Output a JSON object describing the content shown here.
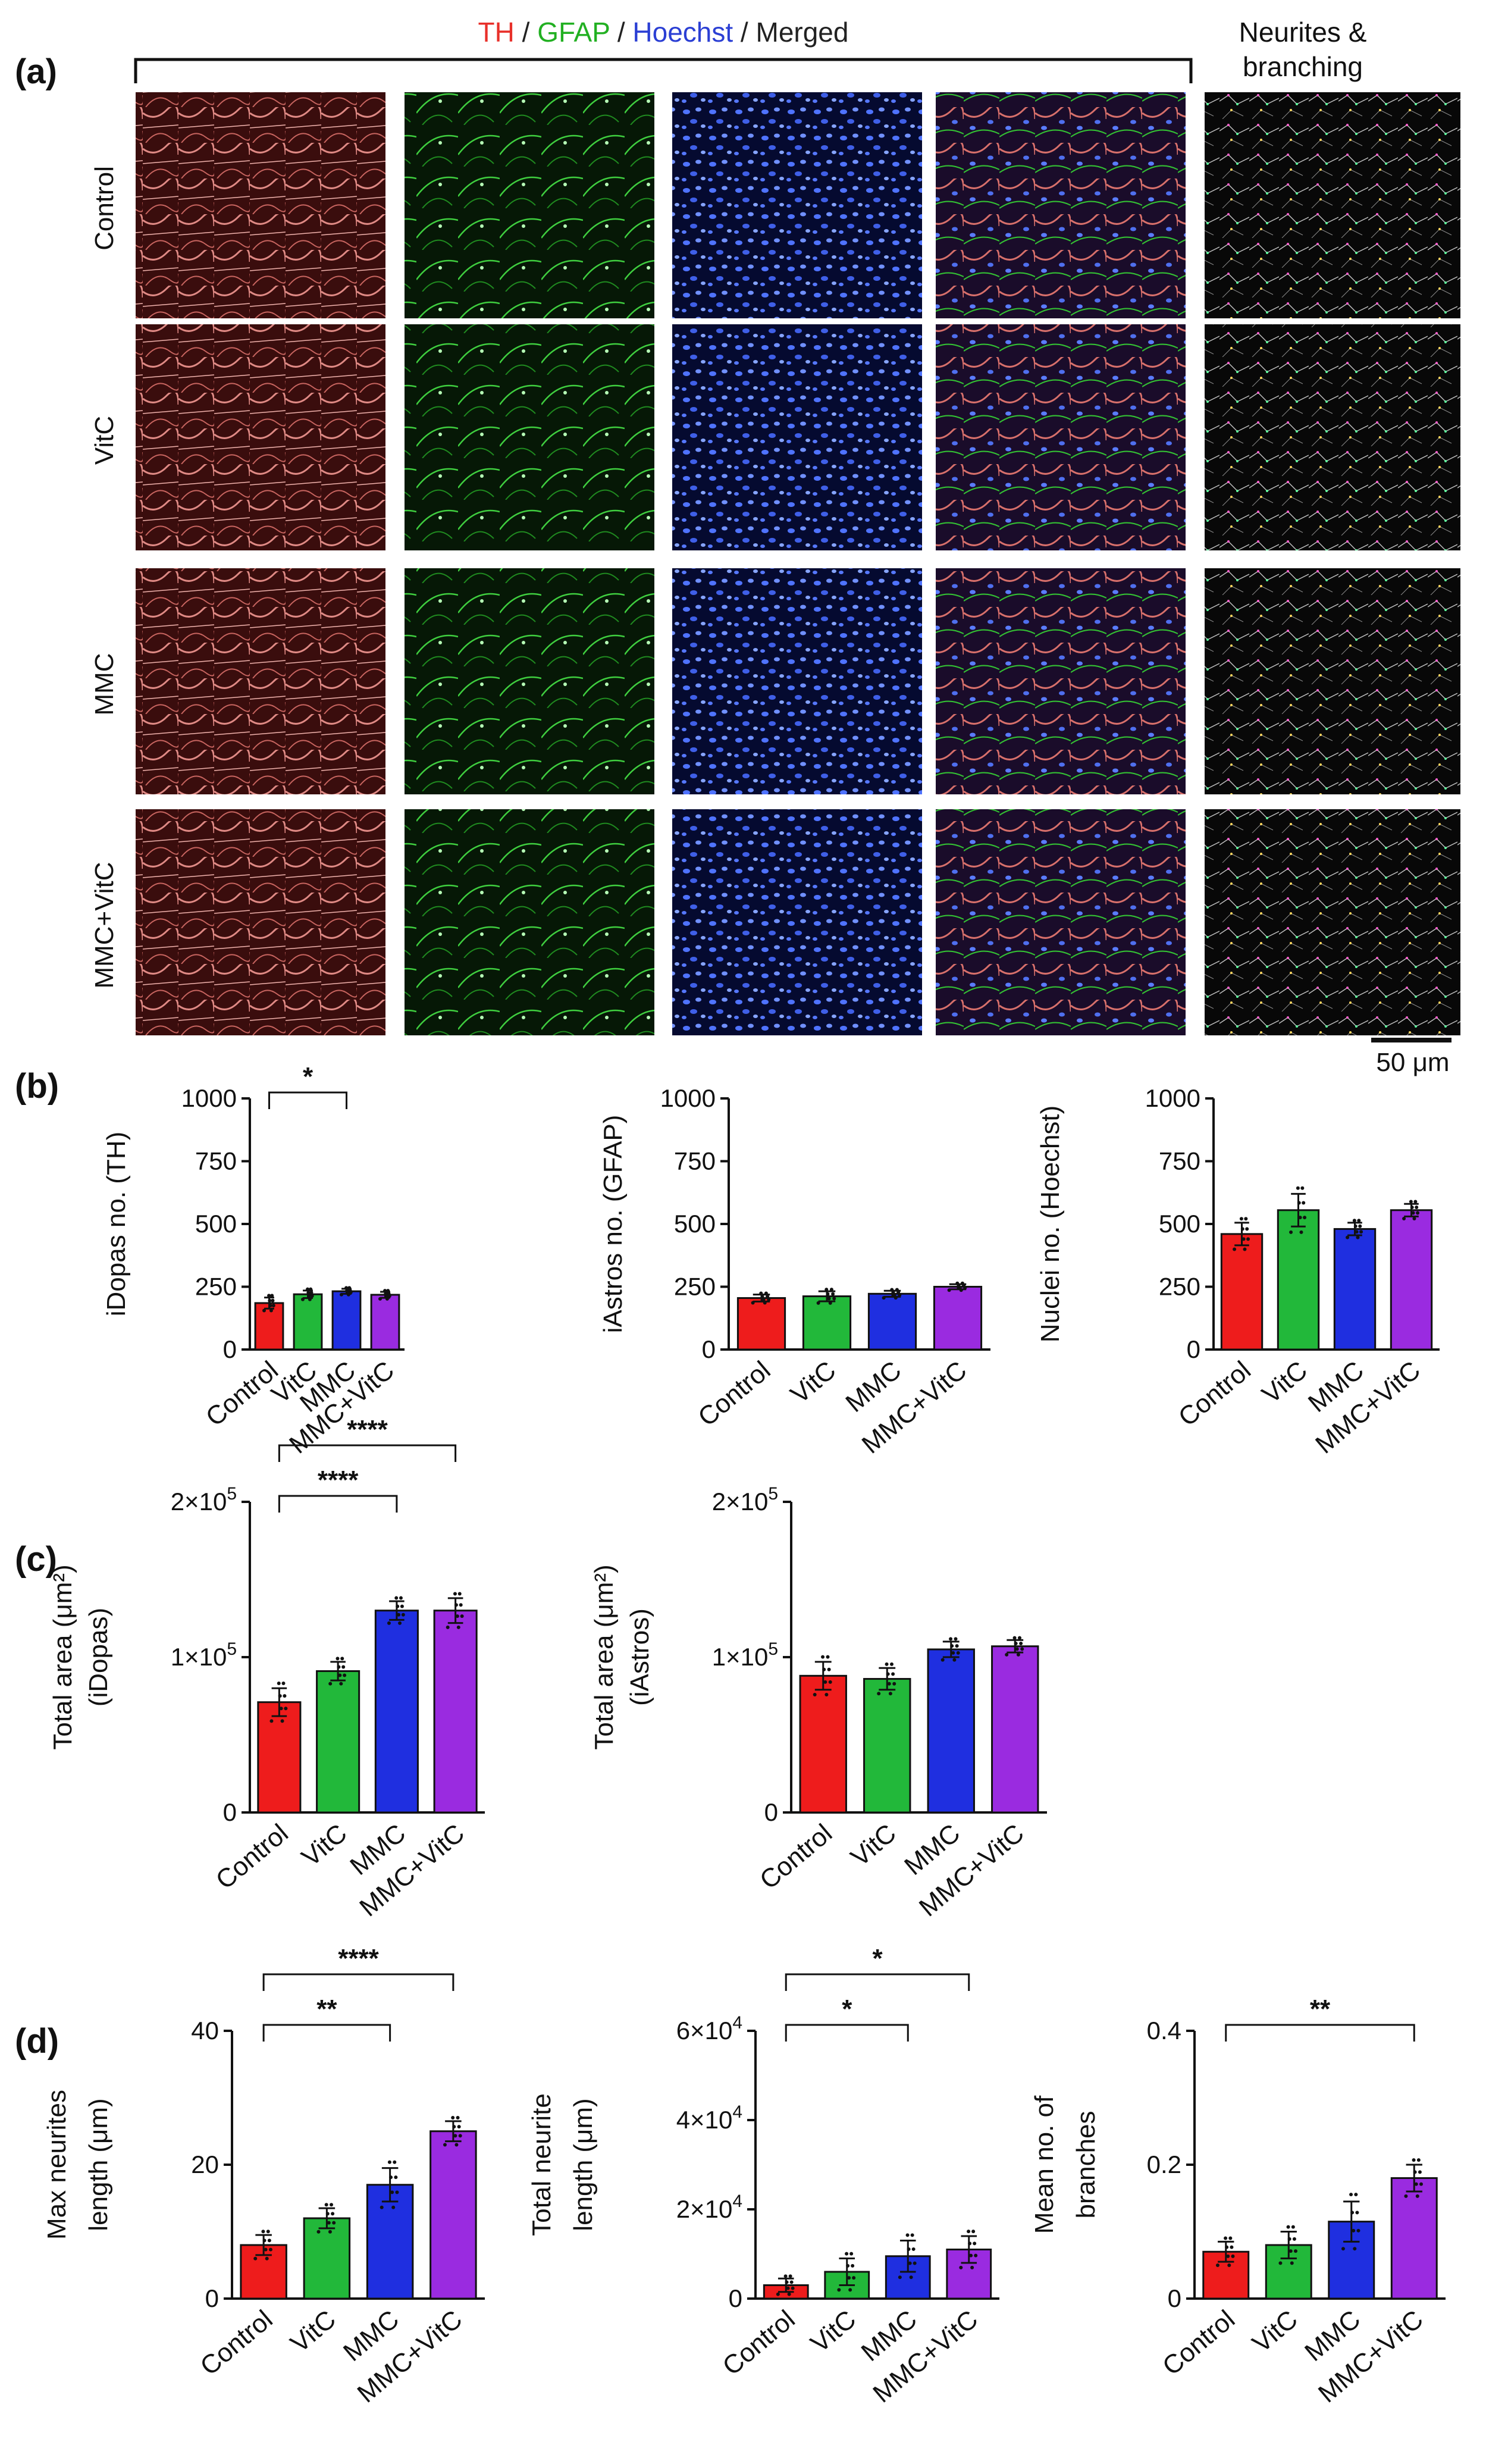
{
  "panel_labels": [
    "(a)",
    "(b)",
    "(c)",
    "(d)"
  ],
  "header": {
    "parts": [
      {
        "text": "TH",
        "color": "#e8302a"
      },
      {
        "text": " / ",
        "color": "#222222"
      },
      {
        "text": "GFAP",
        "color": "#22b022"
      },
      {
        "text": " / ",
        "color": "#222222"
      },
      {
        "text": "Hoechst",
        "color": "#2b3fd4"
      },
      {
        "text": " / ",
        "color": "#222222"
      },
      {
        "text": "Merged",
        "color": "#222222"
      }
    ],
    "neurites_line1": "Neurites &",
    "neurites_line2": "branching"
  },
  "rows": [
    "Control",
    "VitC",
    "MMC",
    "MMC+VitC"
  ],
  "scale_bar": "50 μm",
  "colors": {
    "Control": "#ee1c1c",
    "VitC": "#22b83a",
    "MMC": "#1f2fe0",
    "MMC+VitC": "#9a2be0",
    "TH": "#c85a58",
    "GFAP": "#1f8a1f",
    "Hoechst": "#2741b8"
  },
  "chart_data": [
    {
      "type": "bar",
      "panel": "b",
      "categories": [
        "Control",
        "VitC",
        "MMC",
        "MMC+VitC"
      ],
      "values": [
        185,
        220,
        232,
        218
      ],
      "errors": [
        22,
        15,
        10,
        12
      ],
      "ylabel": "iDopas no. (TH)",
      "ylim": [
        0,
        1000
      ],
      "ticks": [
        {
          "v": 0,
          "label": "0"
        },
        {
          "v": 250,
          "label": "250"
        },
        {
          "v": 500,
          "label": "500"
        },
        {
          "v": 750,
          "label": "750"
        },
        {
          "v": 1000,
          "label": "1000"
        }
      ],
      "significance": [
        {
          "from": 0,
          "to": 2,
          "label": "*"
        }
      ]
    },
    {
      "type": "bar",
      "panel": "b",
      "categories": [
        "Control",
        "VitC",
        "MMC",
        "MMC+VitC"
      ],
      "values": [
        205,
        212,
        222,
        250
      ],
      "errors": [
        14,
        20,
        12,
        10
      ],
      "ylabel": "iAstros no. (GFAP)",
      "ylim": [
        0,
        1000
      ],
      "ticks": [
        {
          "v": 0,
          "label": "0"
        },
        {
          "v": 250,
          "label": "250"
        },
        {
          "v": 500,
          "label": "500"
        },
        {
          "v": 750,
          "label": "750"
        },
        {
          "v": 1000,
          "label": "1000"
        }
      ],
      "significance": []
    },
    {
      "type": "bar",
      "panel": "b",
      "categories": [
        "Control",
        "VitC",
        "MMC",
        "MMC+VitC"
      ],
      "values": [
        460,
        555,
        480,
        555
      ],
      "errors": [
        45,
        65,
        25,
        25
      ],
      "ylabel": "Nuclei no. (Hoechst)",
      "ylim": [
        0,
        1000
      ],
      "ticks": [
        {
          "v": 0,
          "label": "0"
        },
        {
          "v": 250,
          "label": "250"
        },
        {
          "v": 500,
          "label": "500"
        },
        {
          "v": 750,
          "label": "750"
        },
        {
          "v": 1000,
          "label": "1000"
        }
      ],
      "significance": []
    },
    {
      "type": "bar",
      "panel": "c",
      "categories": [
        "Control",
        "VitC",
        "MMC",
        "MMC+VitC"
      ],
      "values": [
        71000,
        91000,
        130000,
        130000
      ],
      "errors": [
        9000,
        6000,
        6000,
        8000
      ],
      "ylabel": "Total area (μm²)",
      "ylabel2": "(iDopas)",
      "ylim": [
        0,
        200000
      ],
      "ticks": [
        {
          "v": 0,
          "label": "0",
          "base": "0",
          "exp": ""
        },
        {
          "v": 100000,
          "label": "1×10^5",
          "base": "1×10",
          "exp": "5"
        },
        {
          "v": 200000,
          "label": "2×10^5",
          "base": "2×10",
          "exp": "5"
        }
      ],
      "significance": [
        {
          "from": 0,
          "to": 2,
          "label": "****"
        },
        {
          "from": 0,
          "to": 3,
          "label": "****"
        }
      ]
    },
    {
      "type": "bar",
      "panel": "c",
      "categories": [
        "Control",
        "VitC",
        "MMC",
        "MMC+VitC"
      ],
      "values": [
        88000,
        86000,
        105000,
        107000
      ],
      "errors": [
        9000,
        7000,
        5000,
        4000
      ],
      "ylabel": "Total area (μm²)",
      "ylabel2": "(iAstros)",
      "ylim": [
        0,
        200000
      ],
      "ticks": [
        {
          "v": 0,
          "label": "0",
          "base": "0",
          "exp": ""
        },
        {
          "v": 100000,
          "label": "1×10^5",
          "base": "1×10",
          "exp": "5"
        },
        {
          "v": 200000,
          "label": "2×10^5",
          "base": "2×10",
          "exp": "5"
        }
      ],
      "significance": []
    },
    {
      "type": "bar",
      "panel": "d",
      "categories": [
        "Control",
        "VitC",
        "MMC",
        "MMC+VitC"
      ],
      "values": [
        8,
        12,
        17,
        25
      ],
      "errors": [
        1.5,
        1.5,
        2.5,
        1.5
      ],
      "ylabel": "Max neurites",
      "ylabel2": "length (μm)",
      "ylim": [
        0,
        40
      ],
      "ticks": [
        {
          "v": 0,
          "label": "0"
        },
        {
          "v": 20,
          "label": "20"
        },
        {
          "v": 40,
          "label": "40"
        }
      ],
      "significance": [
        {
          "from": 0,
          "to": 2,
          "label": "**"
        },
        {
          "from": 0,
          "to": 3,
          "label": "****"
        }
      ]
    },
    {
      "type": "bar",
      "panel": "d",
      "categories": [
        "Control",
        "VitC",
        "MMC",
        "MMC+VitC"
      ],
      "values": [
        3000,
        6000,
        9500,
        11000
      ],
      "errors": [
        1500,
        3000,
        3500,
        3000
      ],
      "ylabel": "Total neurite",
      "ylabel2": "length (μm)",
      "ylim": [
        0,
        60000
      ],
      "ticks": [
        {
          "v": 0,
          "label": "0",
          "base": "0",
          "exp": ""
        },
        {
          "v": 20000,
          "label": "2×10^4",
          "base": "2×10",
          "exp": "4"
        },
        {
          "v": 40000,
          "label": "4×10^4",
          "base": "4×10",
          "exp": "4"
        },
        {
          "v": 60000,
          "label": "6×10^4",
          "base": "6×10",
          "exp": "4"
        }
      ],
      "significance": [
        {
          "from": 0,
          "to": 2,
          "label": "*"
        },
        {
          "from": 0,
          "to": 3,
          "label": "*"
        }
      ]
    },
    {
      "type": "bar",
      "panel": "d",
      "categories": [
        "Control",
        "VitC",
        "MMC",
        "MMC+VitC"
      ],
      "values": [
        0.07,
        0.08,
        0.115,
        0.18
      ],
      "errors": [
        0.015,
        0.02,
        0.03,
        0.02
      ],
      "ylabel": "Mean no. of",
      "ylabel2": "branches",
      "ylim": [
        0,
        0.4
      ],
      "ticks": [
        {
          "v": 0,
          "label": "0"
        },
        {
          "v": 0.2,
          "label": "0.2"
        },
        {
          "v": 0.4,
          "label": "0.4"
        }
      ],
      "significance": [
        {
          "from": 0,
          "to": 3,
          "label": "**"
        }
      ]
    }
  ]
}
